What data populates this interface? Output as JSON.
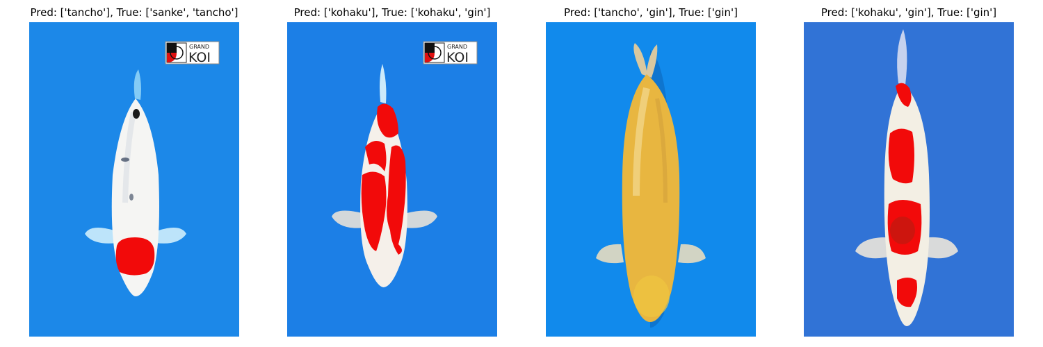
{
  "panels": [
    {
      "title": "Pred: ['tancho'], True: ['sanke', 'tancho']",
      "background": "#1c88e8",
      "variety_shown": "white body with red head spot and sparse black marks",
      "logo": {
        "top": "GRAND",
        "main": "KOI"
      }
    },
    {
      "title": "Pred: ['kohaku'], True: ['kohaku', 'gin']",
      "background": "#1c7fe6",
      "variety_shown": "red and white body",
      "logo": {
        "top": "GRAND",
        "main": "KOI"
      }
    },
    {
      "title": "Pred: ['tancho', 'gin'], True: ['gin']",
      "background": "#118aec",
      "variety_shown": "golden yellow body"
    },
    {
      "title": "Pred: ['kohaku', 'gin'], True: ['gin']",
      "background": "#3173d6",
      "variety_shown": "white body with red patches"
    }
  ],
  "colors": {
    "red": "#f20a0a",
    "white": "#f5f5f3",
    "gold": "#e8b640",
    "black": "#1a1a1a"
  }
}
